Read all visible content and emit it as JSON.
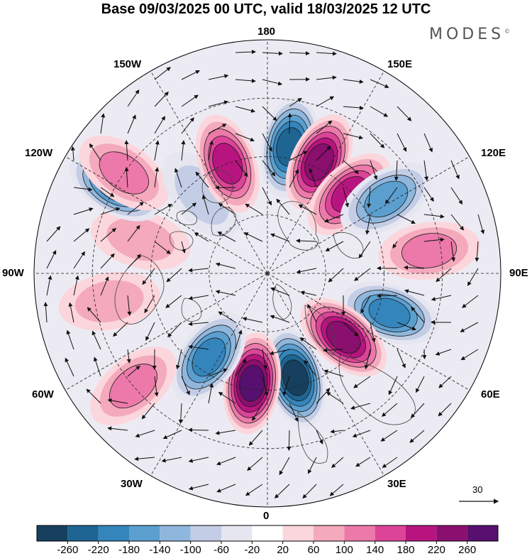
{
  "title": "Base 09/03/2025 00 UTC, valid 18/03/2025 12 UTC",
  "brand": {
    "name": "MODES",
    "mark": "©"
  },
  "longitude_labels": {
    "lon_180": "180",
    "lon_150e": "150E",
    "lon_120e": "120E",
    "lon_90e": "90E",
    "lon_60e": "60E",
    "lon_30e": "30E",
    "lon_0": "0",
    "lon_30w": "30W",
    "lon_60w": "60W",
    "lon_90w": "90W",
    "lon_120w": "120W",
    "lon_150w": "150W"
  },
  "vector_reference": {
    "value": "30"
  },
  "colorbar": {
    "ticks": [
      "-260",
      "-220",
      "-180",
      "-140",
      "-100",
      "-60",
      "-20",
      "20",
      "60",
      "100",
      "140",
      "180",
      "220",
      "260"
    ],
    "colors": [
      "#16405e",
      "#1e6592",
      "#3585bd",
      "#5b9fcf",
      "#8fb7dd",
      "#c3cde6",
      "#e6e6f1",
      "#ffffff",
      "#fbd6dc",
      "#f4a9bd",
      "#ec79a9",
      "#dc4498",
      "#b8147f",
      "#8a0f6e",
      "#57106f"
    ]
  },
  "anomaly_centers": [
    {
      "lon": 170,
      "lat": 46,
      "value": -240
    },
    {
      "lon": 155,
      "lat": 48,
      "value": 220
    },
    {
      "lon": 134,
      "lat": 51,
      "value": 200
    },
    {
      "lon": 122,
      "lat": 42,
      "value": -160
    },
    {
      "lon": 98,
      "lat": 34,
      "value": 120
    },
    {
      "lon": 72,
      "lat": 46,
      "value": -180
    },
    {
      "lon": 50,
      "lat": 56,
      "value": 220
    },
    {
      "lon": 15,
      "lat": 53,
      "value": -260
    },
    {
      "lon": -8,
      "lat": 52,
      "value": 260
    },
    {
      "lon": -35,
      "lat": 55,
      "value": -180
    },
    {
      "lon": -50,
      "lat": 30,
      "value": 100
    },
    {
      "lon": -80,
      "lat": 35,
      "value": 80
    },
    {
      "lon": -105,
      "lat": 45,
      "value": 80
    },
    {
      "lon": -120,
      "lat": 30,
      "value": -200
    },
    {
      "lon": -125,
      "lat": 30,
      "value": 120
    },
    {
      "lon": -140,
      "lat": 55,
      "value": -60
    },
    {
      "lon": -160,
      "lat": 50,
      "value": 200
    }
  ]
}
